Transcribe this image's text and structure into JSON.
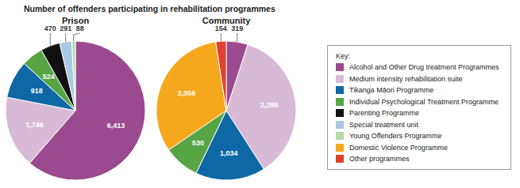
{
  "title": "Number of offenders participating in rehabilitation programmes",
  "legend": "right",
  "legend_title": "Key:",
  "chart_data": [
    {
      "type": "pie",
      "title": "Prison",
      "categories": [
        "Alcohol and Other Drug treatment Programmes",
        "Medium intensity rehabilitation suite",
        "Tikanga Māori Programme",
        "Individual Psychological Treatment Programme",
        "Parenting Programme",
        "Special treatment unit",
        "Young Offenders Programme"
      ],
      "values": [
        6413,
        1746,
        918,
        524,
        470,
        291,
        88
      ],
      "value_labels": [
        "6,413",
        "1,746",
        "918",
        "524",
        "470",
        "291",
        "88"
      ],
      "colors": [
        "#9b4a8f",
        "#d8bad6",
        "#0e68a6",
        "#56a545",
        "#111111",
        "#a9c8e2",
        "#b9d9a9"
      ],
      "data_labels": true
    },
    {
      "type": "pie",
      "title": "Community",
      "categories": [
        "Alcohol and Other Drug treatment Programmes",
        "Medium intensity rehabilitation suite",
        "Tikanga Māori Programme",
        "Individual Psychological Treatment Programme",
        "Domestic Violence Programme",
        "Other programmes"
      ],
      "values": [
        319,
        2298,
        1034,
        530,
        2056,
        154
      ],
      "value_labels": [
        "319",
        "2,298",
        "1,034",
        "530",
        "2,056",
        "154"
      ],
      "colors": [
        "#9b4a8f",
        "#d8bad6",
        "#0e68a6",
        "#56a545",
        "#f6a81c",
        "#e2412d"
      ],
      "data_labels": true
    }
  ]
}
